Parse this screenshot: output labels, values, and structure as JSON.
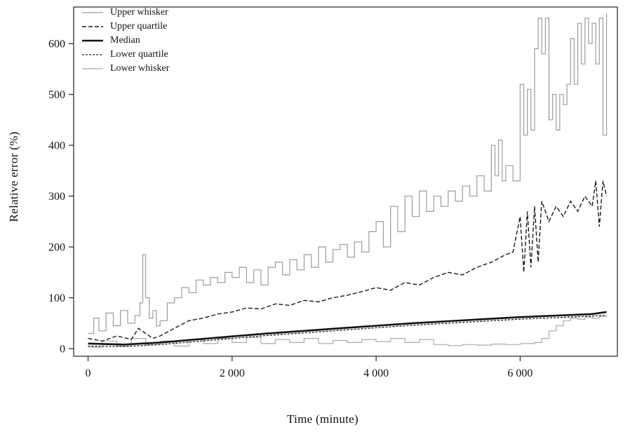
{
  "figure": {
    "background": "#ffffff",
    "axis_color": "#222222"
  },
  "chart_data": {
    "type": "line",
    "title": "",
    "xlabel": "Time (minute)",
    "ylabel": "Relative error (%)",
    "xlim": [
      -200,
      7350
    ],
    "ylim": [
      -15,
      672
    ],
    "grid": false,
    "legend_position": "top-left",
    "x_ticks": {
      "values": [
        0,
        2000,
        4000,
        6000
      ],
      "labels": [
        "0",
        "2 000",
        "4 000",
        "6 000"
      ]
    },
    "y_ticks": {
      "values": [
        0,
        100,
        200,
        300,
        400,
        500,
        600
      ],
      "labels": [
        "0",
        "100",
        "200",
        "300",
        "400",
        "500",
        "600"
      ]
    },
    "draw_order": [
      0,
      4,
      1,
      3,
      2
    ],
    "series": [
      {
        "name": "Upper whisker",
        "slug": "upper-whisker",
        "color": "#9c9c9c",
        "width": 1.2,
        "dash": "",
        "step": true,
        "x": [
          0,
          80,
          150,
          250,
          350,
          450,
          550,
          650,
          720,
          760,
          800,
          850,
          900,
          950,
          1000,
          1100,
          1200,
          1300,
          1400,
          1500,
          1600,
          1700,
          1800,
          1900,
          2000,
          2100,
          2200,
          2300,
          2400,
          2500,
          2600,
          2700,
          2800,
          2900,
          3000,
          3100,
          3200,
          3300,
          3400,
          3500,
          3600,
          3700,
          3800,
          3900,
          4000,
          4100,
          4200,
          4300,
          4400,
          4500,
          4600,
          4700,
          4800,
          4900,
          5000,
          5100,
          5200,
          5300,
          5400,
          5500,
          5600,
          5650,
          5700,
          5750,
          5800,
          5900,
          6000,
          6050,
          6100,
          6150,
          6200,
          6250,
          6300,
          6350,
          6400,
          6450,
          6500,
          6550,
          6600,
          6650,
          6700,
          6750,
          6800,
          6850,
          6900,
          6950,
          7000,
          7050,
          7100,
          7150,
          7200
        ],
        "y": [
          30,
          60,
          35,
          70,
          45,
          75,
          50,
          65,
          90,
          185,
          100,
          60,
          75,
          45,
          55,
          90,
          100,
          120,
          110,
          135,
          125,
          140,
          130,
          150,
          140,
          160,
          130,
          155,
          125,
          160,
          170,
          145,
          175,
          155,
          185,
          160,
          200,
          170,
          195,
          205,
          180,
          210,
          190,
          230,
          250,
          200,
          280,
          230,
          300,
          260,
          310,
          270,
          300,
          280,
          310,
          290,
          320,
          300,
          340,
          310,
          400,
          340,
          410,
          330,
          360,
          330,
          520,
          420,
          510,
          430,
          590,
          650,
          580,
          650,
          450,
          500,
          430,
          500,
          480,
          520,
          610,
          520,
          640,
          560,
          650,
          600,
          640,
          560,
          650,
          420,
          660
        ]
      },
      {
        "name": "Upper quartile",
        "slug": "upper-quartile",
        "color": "#1a1a1a",
        "width": 1.4,
        "dash": "6 3",
        "step": false,
        "x": [
          0,
          200,
          400,
          600,
          700,
          800,
          900,
          1000,
          1200,
          1400,
          1600,
          1800,
          2000,
          2200,
          2400,
          2600,
          2800,
          3000,
          3200,
          3400,
          3600,
          3800,
          4000,
          4200,
          4400,
          4600,
          4800,
          5000,
          5200,
          5400,
          5600,
          5800,
          5900,
          6000,
          6050,
          6100,
          6150,
          6200,
          6250,
          6300,
          6400,
          6500,
          6600,
          6700,
          6800,
          6900,
          7000,
          7050,
          7100,
          7150,
          7200
        ],
        "y": [
          20,
          15,
          25,
          18,
          40,
          30,
          20,
          25,
          40,
          55,
          60,
          68,
          72,
          80,
          78,
          88,
          85,
          95,
          92,
          100,
          105,
          112,
          120,
          115,
          130,
          125,
          140,
          150,
          145,
          160,
          170,
          185,
          190,
          260,
          150,
          270,
          160,
          280,
          170,
          290,
          250,
          280,
          260,
          290,
          270,
          300,
          280,
          330,
          240,
          330,
          300
        ]
      },
      {
        "name": "Median",
        "slug": "median",
        "color": "#111111",
        "width": 2.6,
        "dash": "",
        "step": false,
        "x": [
          0,
          500,
          1000,
          1500,
          2000,
          2500,
          3000,
          3500,
          4000,
          4500,
          5000,
          5500,
          6000,
          6500,
          7000,
          7200
        ],
        "y": [
          10,
          8,
          12,
          18,
          24,
          30,
          35,
          40,
          45,
          50,
          54,
          58,
          62,
          65,
          68,
          72
        ]
      },
      {
        "name": "Lower quartile",
        "slug": "lower-quartile",
        "color": "#1a1a1a",
        "width": 1.3,
        "dash": "3 2",
        "step": false,
        "x": [
          0,
          500,
          1000,
          1500,
          2000,
          2500,
          3000,
          3500,
          4000,
          4500,
          5000,
          5500,
          6000,
          6500,
          7000,
          7200
        ],
        "y": [
          5,
          4,
          8,
          14,
          20,
          26,
          31,
          36,
          41,
          46,
          50,
          54,
          58,
          61,
          64,
          66
        ]
      },
      {
        "name": "Lower whisker",
        "slug": "lower-whisker",
        "color": "#ababab",
        "width": 1.2,
        "dash": "",
        "step": true,
        "x": [
          0,
          200,
          400,
          600,
          800,
          1000,
          1200,
          1400,
          1600,
          1800,
          2000,
          2200,
          2400,
          2600,
          2800,
          3000,
          3200,
          3400,
          3600,
          3800,
          4000,
          4200,
          4400,
          4600,
          4800,
          5000,
          5200,
          5400,
          5600,
          5800,
          6000,
          6200,
          6300,
          6400,
          6500,
          6600,
          6700,
          6800,
          6900,
          7000,
          7100,
          7200
        ],
        "y": [
          3,
          15,
          5,
          20,
          8,
          15,
          5,
          18,
          10,
          20,
          12,
          22,
          10,
          18,
          12,
          20,
          10,
          16,
          12,
          18,
          14,
          20,
          12,
          18,
          8,
          6,
          8,
          7,
          9,
          8,
          10,
          12,
          20,
          35,
          45,
          55,
          60,
          58,
          62,
          60,
          63,
          65
        ]
      }
    ]
  }
}
